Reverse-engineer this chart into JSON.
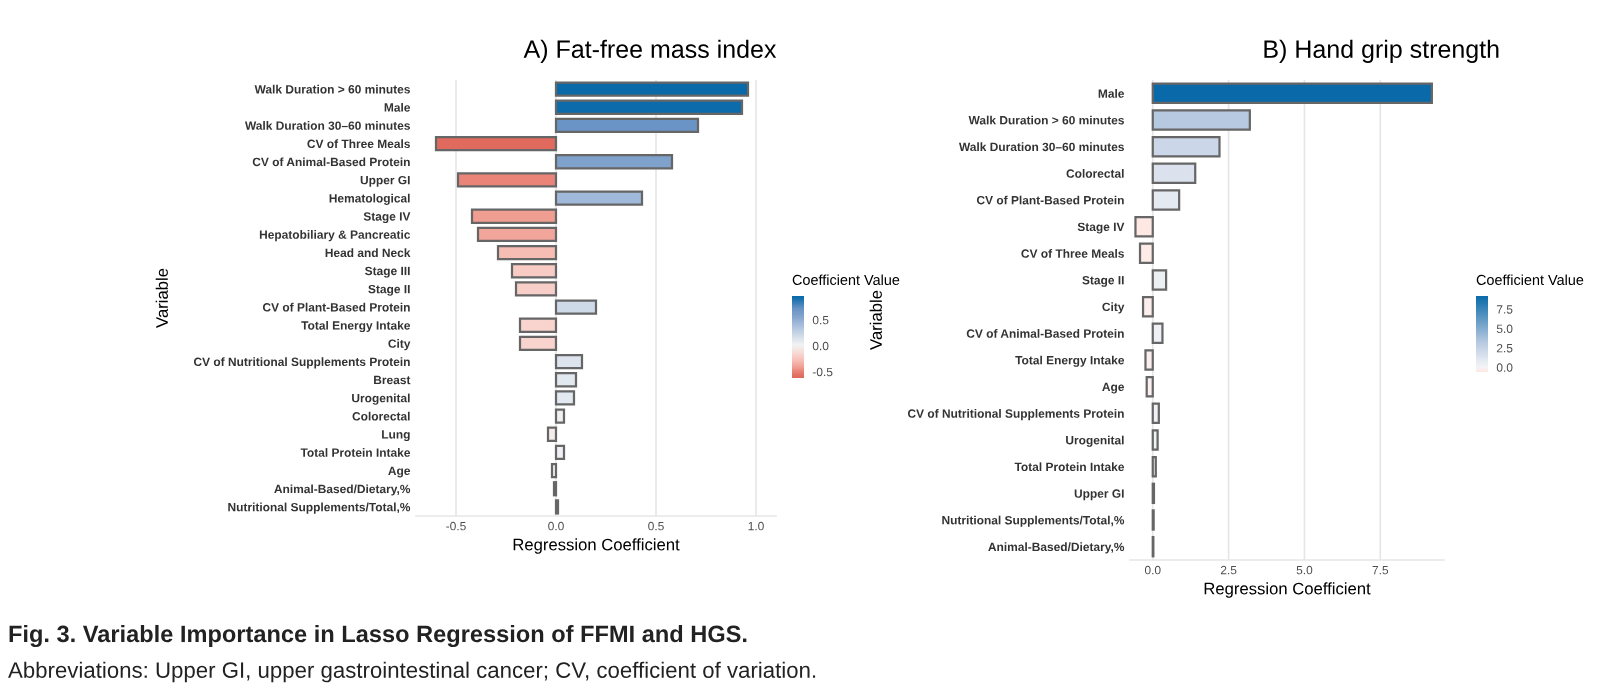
{
  "chart_data": [
    {
      "type": "bar",
      "orientation": "horizontal",
      "title": "A) Fat-free mass index",
      "xlabel": "Regression Coefficient",
      "ylabel": "Variable",
      "clabel": "Coefficient Value",
      "categories": [
        "Walk Duration > 60 minutes",
        "Male",
        "Walk Duration 30–60 minutes",
        "CV of Three Meals",
        "CV of Animal-Based Protein",
        "Upper GI",
        "Hematological",
        "Stage IV",
        "Hepatobiliary & Pancreatic",
        "Head and Neck",
        "Stage III",
        "Stage II",
        "CV of Plant-Based Protein",
        "Total Energy Intake",
        "City",
        "CV of Nutritional Supplements Protein",
        "Breast",
        "Urogenital",
        "Colorectal",
        "Lung",
        "Total Protein Intake",
        "Age",
        "Animal-Based/Dietary,%",
        "Nutritional Supplements/Total,%"
      ],
      "values": [
        0.96,
        0.93,
        0.71,
        -0.6,
        0.58,
        -0.49,
        0.43,
        -0.42,
        -0.39,
        -0.29,
        -0.22,
        -0.2,
        0.2,
        -0.18,
        -0.18,
        0.13,
        0.1,
        0.09,
        0.04,
        -0.04,
        0.04,
        -0.02,
        -0.01,
        0.01
      ],
      "colors": [
        "#0a6aa9",
        "#0c6cab",
        "#6a94c6",
        "#e06a5e",
        "#7fa2cc",
        "#ea8478",
        "#a0b9da",
        "#f09d92",
        "#f2a59b",
        "#f6bdb4",
        "#f8cbc4",
        "#f8cfc8",
        "#cfdae8",
        "#f9d3cd",
        "#f9d3cd",
        "#dde4ee",
        "#e2e8f0",
        "#e3e9f0",
        "#eef0f4",
        "#f3eceb",
        "#eff1f4",
        "#f4efee",
        "#f4f3f3",
        "#f4f4f4"
      ],
      "xlim": [
        -0.7,
        1.1
      ],
      "xticks": [
        {
          "value": -0.5,
          "label": "-0.5"
        },
        {
          "value": 0,
          "label": "0.0"
        },
        {
          "value": 0.5,
          "label": "0.5"
        },
        {
          "value": 1,
          "label": "1.0"
        }
      ],
      "clim": [
        -0.62,
        0.96
      ],
      "cticks": [
        {
          "value": -0.5,
          "label": "-0.5"
        },
        {
          "value": 0,
          "label": "0.0"
        },
        {
          "value": 0.5,
          "label": "0.5"
        }
      ],
      "grid": "x",
      "annotations": [
        "Fig. 3. Variable Importance in Lasso Regression of FFMI and HGS.",
        "Abbreviations: Upper GI, upper gastrointestinal cancer; CV, coefficient of variation."
      ]
    },
    {
      "type": "bar",
      "orientation": "horizontal",
      "title": "B) Hand grip strength",
      "xlabel": "Regression Coefficient",
      "ylabel": "Variable",
      "clabel": "Coefficient Value",
      "categories": [
        "Male",
        "Walk Duration > 60 minutes",
        "Walk Duration 30–60 minutes",
        "Colorectal",
        "CV of Plant-Based Protein",
        "Stage IV",
        "CV of Three Meals",
        "Stage II",
        "City",
        "CV of Animal-Based Protein",
        "Total Energy Intake",
        "Age",
        "CV of Nutritional Supplements Protein",
        "Urogenital",
        "Total Protein Intake",
        "Upper GI",
        "Nutritional Supplements/Total,%",
        "Animal-Based/Dietary,%"
      ],
      "values": [
        9.2,
        3.2,
        2.2,
        1.4,
        0.87,
        -0.57,
        -0.42,
        0.44,
        -0.32,
        0.32,
        -0.24,
        -0.2,
        0.2,
        0.16,
        0.1,
        0.04,
        0.03,
        0.02
      ],
      "colors": [
        "#0a6aa9",
        "#b7c9e1",
        "#cbd7e8",
        "#dbe2ee",
        "#e5eaf2",
        "#fde8e4",
        "#fdebe8",
        "#eceff4",
        "#fceeec",
        "#eef0f5",
        "#faefee",
        "#f9f0ef",
        "#f0f1f5",
        "#f1f2f5",
        "#f2f2f5",
        "#f3f3f5",
        "#f3f3f5",
        "#f3f3f5"
      ],
      "xlim": [
        -0.75,
        9.6
      ],
      "xticks": [
        {
          "value": 0,
          "label": "0.0"
        },
        {
          "value": 2.5,
          "label": "2.5"
        },
        {
          "value": 5,
          "label": "5.0"
        },
        {
          "value": 7.5,
          "label": "7.5"
        }
      ],
      "clim": [
        -0.6,
        9.2
      ],
      "cticks": [
        {
          "value": 0,
          "label": "0.0"
        },
        {
          "value": 2.5,
          "label": "2.5"
        },
        {
          "value": 5,
          "label": "5.0"
        },
        {
          "value": 7.5,
          "label": "7.5"
        }
      ],
      "grid": "x"
    }
  ]
}
